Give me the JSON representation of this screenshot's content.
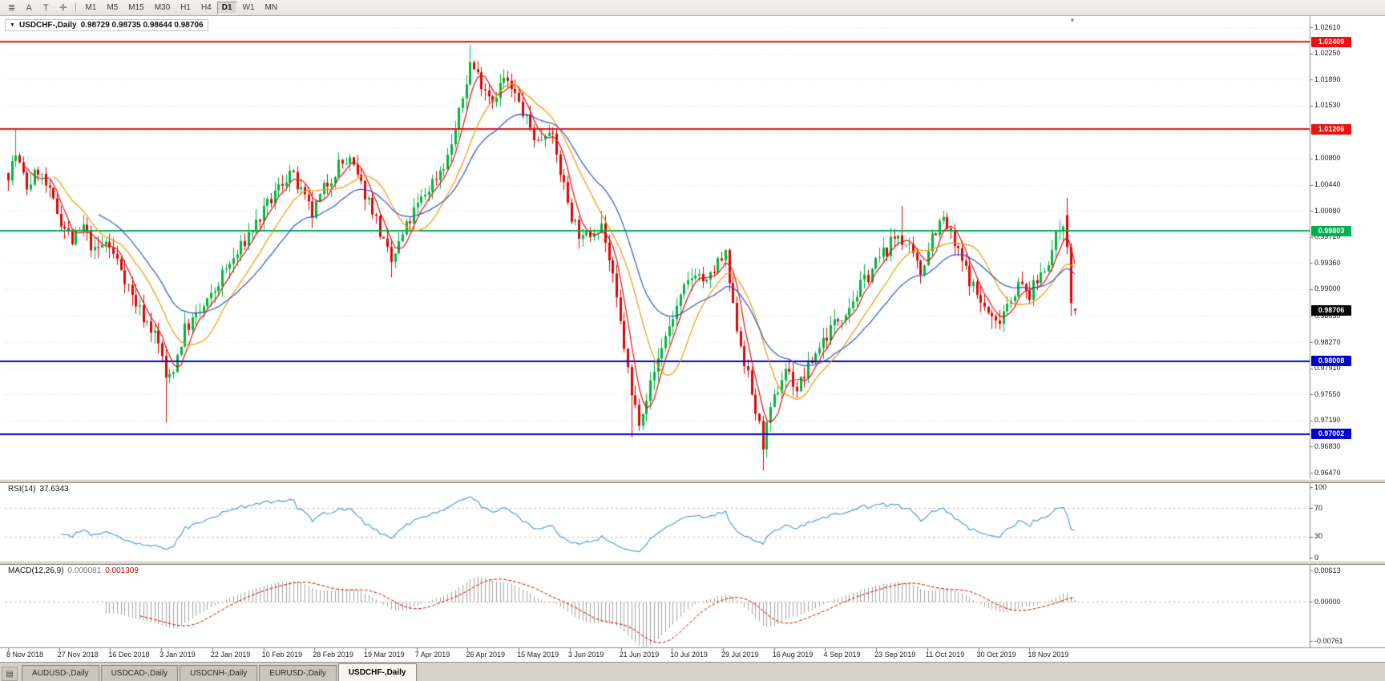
{
  "toolbar": {
    "icon_buttons": [
      {
        "name": "chart-list-icon",
        "glyph": "≣"
      },
      {
        "name": "auto-scroll-icon",
        "glyph": "A"
      },
      {
        "name": "text-tool-icon",
        "glyph": "T"
      },
      {
        "name": "crosshair-tool-icon",
        "glyph": "✛"
      }
    ],
    "timeframes": [
      {
        "label": "M1",
        "active": false
      },
      {
        "label": "M5",
        "active": false
      },
      {
        "label": "M15",
        "active": false
      },
      {
        "label": "M30",
        "active": false
      },
      {
        "label": "H1",
        "active": false
      },
      {
        "label": "H4",
        "active": false
      },
      {
        "label": "D1",
        "active": true
      },
      {
        "label": "W1",
        "active": false
      },
      {
        "label": "MN",
        "active": false
      }
    ]
  },
  "chart": {
    "menu_glyph": "▼",
    "symbol_period": "USDCHF-,Daily",
    "ohlc": "0.98729 0.98735 0.98644 0.98706",
    "shift_marker_glyph": "▼"
  },
  "rsi": {
    "title": "RSI(14)",
    "value": "37.6343",
    "axis_labels": [
      "100",
      "70",
      "30",
      "0"
    ]
  },
  "macd": {
    "title": "MACD(12,26,9)",
    "main_value": "0.000081",
    "signal_value": "0.001309",
    "axis_labels": [
      "0.00613",
      "0.00000",
      "-0.00761"
    ]
  },
  "tabs": {
    "window_icon_glyph": "▤",
    "items": [
      {
        "label": "AUDUSD-,Daily",
        "active": false
      },
      {
        "label": "USDCAD-,Daily",
        "active": false
      },
      {
        "label": "USDCNH-,Daily",
        "active": false
      },
      {
        "label": "EURUSD-,Daily",
        "active": false
      },
      {
        "label": "USDCHF-,Daily",
        "active": true
      }
    ]
  },
  "chart_data": {
    "type": "candlestick",
    "symbol": "USDCHF-",
    "period": "Daily",
    "current_bar": {
      "open": 0.98729,
      "high": 0.98735,
      "low": 0.98644,
      "close": 0.98706
    },
    "y_axis_labels": [
      "1.02610",
      "1.02250",
      "1.01890",
      "1.01530",
      "1.01170",
      "1.00800",
      "1.00440",
      "1.00080",
      "0.99720",
      "0.99360",
      "0.99000",
      "0.98630",
      "0.98270",
      "0.97910",
      "0.97550",
      "0.97190",
      "0.96830",
      "0.96470"
    ],
    "x_axis_labels": [
      "8 Nov 2018",
      "27 Nov 2018",
      "16 Dec 2018",
      "3 Jan 2019",
      "22 Jan 2019",
      "10 Feb 2019",
      "28 Feb 2019",
      "19 Mar 2019",
      "7 Apr 2019",
      "26 Apr 2019",
      "15 May 2019",
      "3 Jun 2019",
      "21 Jun 2019",
      "10 Jul 2019",
      "29 Jul 2019",
      "16 Aug 2019",
      "4 Sep 2019",
      "23 Sep 2019",
      "11 Oct 2019",
      "30 Oct 2019",
      "18 Nov 2019"
    ],
    "hlines": [
      {
        "value": 1.02409,
        "label": "1.02409",
        "color": "#ee1111",
        "role": "resistance"
      },
      {
        "value": 1.01206,
        "label": "1.01206",
        "color": "#ee1111",
        "role": "resistance"
      },
      {
        "value": 0.99803,
        "label": "0.99803",
        "color": "#00b050",
        "role": "level"
      },
      {
        "value": 0.98008,
        "label": "0.98008",
        "color": "#0000cc",
        "role": "support"
      },
      {
        "value": 0.97002,
        "label": "0.97002",
        "color": "#0000cc",
        "role": "support"
      }
    ],
    "current_price": {
      "value": 0.98706,
      "label": "0.98706",
      "badge_color": "#000000"
    },
    "candle_count": 285,
    "labels_every_n_candles": 13.6,
    "up_color": "#00b43c",
    "down_color": "#dc0404",
    "price_anchors": [
      [
        0,
        1.006
      ],
      [
        2,
        1.0085
      ],
      [
        5,
        1.004
      ],
      [
        8,
        1.0065
      ],
      [
        11,
        1.003
      ],
      [
        14,
        0.9995
      ],
      [
        17,
        0.9965
      ],
      [
        20,
        0.9985
      ],
      [
        23,
        0.995
      ],
      [
        26,
        0.9965
      ],
      [
        30,
        0.993
      ],
      [
        33,
        0.989
      ],
      [
        36,
        0.9862
      ],
      [
        39,
        0.9838
      ],
      [
        41,
        0.9808
      ],
      [
        42,
        0.9772
      ],
      [
        44,
        0.9792
      ],
      [
        47,
        0.9845
      ],
      [
        50,
        0.9862
      ],
      [
        54,
        0.9888
      ],
      [
        57,
        0.992
      ],
      [
        61,
        0.9948
      ],
      [
        64,
        0.9976
      ],
      [
        68,
        1.0006
      ],
      [
        72,
        1.004
      ],
      [
        75,
        1.0062
      ],
      [
        78,
        1.0032
      ],
      [
        81,
        1.0002
      ],
      [
        84,
        1.0038
      ],
      [
        88,
        1.0072
      ],
      [
        91,
        1.0076
      ],
      [
        94,
        1.0042
      ],
      [
        97,
        1.0012
      ],
      [
        100,
        0.9962
      ],
      [
        102,
        0.9936
      ],
      [
        105,
        0.9974
      ],
      [
        108,
        1.0006
      ],
      [
        111,
        1.0032
      ],
      [
        114,
        1.0056
      ],
      [
        117,
        1.0082
      ],
      [
        120,
        1.014
      ],
      [
        123,
        1.0212
      ],
      [
        126,
        1.0186
      ],
      [
        129,
        1.0162
      ],
      [
        132,
        1.019
      ],
      [
        135,
        1.0166
      ],
      [
        138,
        1.0132
      ],
      [
        141,
        1.0102
      ],
      [
        144,
        1.0126
      ],
      [
        147,
        1.0062
      ],
      [
        150,
        1.0002
      ],
      [
        153,
        0.9966
      ],
      [
        156,
        0.9984
      ],
      [
        158,
        0.9992
      ],
      [
        161,
        0.9912
      ],
      [
        164,
        0.9822
      ],
      [
        166,
        0.9752
      ],
      [
        168,
        0.9722
      ],
      [
        171,
        0.9768
      ],
      [
        174,
        0.9822
      ],
      [
        177,
        0.9862
      ],
      [
        180,
        0.9898
      ],
      [
        183,
        0.9926
      ],
      [
        186,
        0.9906
      ],
      [
        189,
        0.9936
      ],
      [
        191,
        0.9944
      ],
      [
        193,
        0.9872
      ],
      [
        196,
        0.9802
      ],
      [
        199,
        0.9732
      ],
      [
        201,
        0.9688
      ],
      [
        204,
        0.9748
      ],
      [
        207,
        0.9792
      ],
      [
        210,
        0.9762
      ],
      [
        213,
        0.9792
      ],
      [
        216,
        0.9822
      ],
      [
        219,
        0.9846
      ],
      [
        222,
        0.9866
      ],
      [
        225,
        0.9886
      ],
      [
        228,
        0.9912
      ],
      [
        231,
        0.9936
      ],
      [
        234,
        0.9956
      ],
      [
        237,
        0.9976
      ],
      [
        240,
        0.9952
      ],
      [
        243,
        0.9922
      ],
      [
        246,
        0.9976
      ],
      [
        249,
        0.9996
      ],
      [
        252,
        0.996
      ],
      [
        255,
        0.9926
      ],
      [
        258,
        0.9892
      ],
      [
        261,
        0.9866
      ],
      [
        263,
        0.9852
      ],
      [
        266,
        0.9882
      ],
      [
        269,
        0.9906
      ],
      [
        272,
        0.9892
      ],
      [
        275,
        0.9922
      ],
      [
        278,
        0.9952
      ],
      [
        280,
        0.9986
      ],
      [
        282,
        1.0005
      ],
      [
        283,
        0.996
      ],
      [
        284,
        0.988
      ]
    ],
    "wick_spikes": [
      {
        "i": 2,
        "high": 1.0121
      },
      {
        "i": 42,
        "low": 0.9716
      },
      {
        "i": 102,
        "low": 0.9916
      },
      {
        "i": 123,
        "high": 1.0237
      },
      {
        "i": 158,
        "high": 1.0008
      },
      {
        "i": 166,
        "low": 0.9695
      },
      {
        "i": 191,
        "high": 0.9952
      },
      {
        "i": 201,
        "low": 0.965
      },
      {
        "i": 238,
        "high": 1.0015
      },
      {
        "i": 262,
        "low": 0.9845
      }
    ],
    "candle_overrides": [
      {
        "i": 282,
        "o": 1.0002,
        "h": 1.0026,
        "l": 0.9948,
        "c": 0.9958
      },
      {
        "i": 283,
        "o": 0.9958,
        "h": 0.9964,
        "l": 0.9863,
        "c": 0.9881
      },
      {
        "i": 284,
        "o": 0.98729,
        "h": 0.98735,
        "l": 0.98644,
        "c": 0.98706
      }
    ],
    "synthesis": {
      "seed": 7,
      "close_jitter": 0.0021,
      "wick_extent": 0.0015
    },
    "moving_averages": [
      {
        "period": 5,
        "method": "sma",
        "color": "#e01010"
      },
      {
        "period": 13,
        "method": "sma",
        "color": "#f09800"
      },
      {
        "period": 25,
        "method": "ema",
        "color": "#2f55c0"
      }
    ],
    "rsi": {
      "period": 14,
      "color": "#4a9ede",
      "levels": [
        70,
        30
      ],
      "range": [
        0,
        100
      ]
    },
    "macd": {
      "fast": 12,
      "slow": 26,
      "signal": 9,
      "histogram_color": "#a2a2a2",
      "signal_color": "#d00000",
      "scale": {
        "max": 0.00613,
        "min": -0.00761
      }
    }
  }
}
